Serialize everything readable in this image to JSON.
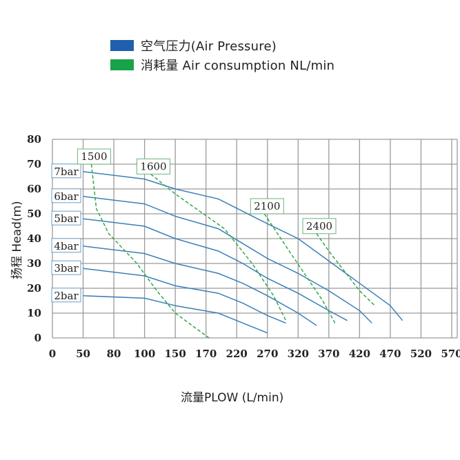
{
  "legend": [
    {
      "label": "空气压力(Air Pressure)",
      "color": "#1f5fae"
    },
    {
      "label": "消耗量 Air consumption NL/min",
      "color": "#17a34a"
    }
  ],
  "chart_data": {
    "type": "line",
    "xlabel": "流量PLOW (L/min)",
    "ylabel": "扬程 Head(m)",
    "x_ticks": [
      "0",
      "50",
      "80",
      "100",
      "150",
      "170",
      "220",
      "270",
      "320",
      "370",
      "420",
      "470",
      "520",
      "570"
    ],
    "y_ticks": [
      0,
      10,
      20,
      30,
      40,
      50,
      60,
      70,
      80
    ],
    "ylim": [
      0,
      80
    ],
    "grid": true,
    "series": [
      {
        "name": "7bar",
        "type": "pressure",
        "color": "#3b7fb8",
        "points": [
          [
            50,
            67
          ],
          [
            100,
            64
          ],
          [
            150,
            60
          ],
          [
            190,
            56
          ],
          [
            230,
            51
          ],
          [
            270,
            46
          ],
          [
            320,
            40
          ],
          [
            370,
            31
          ],
          [
            420,
            22
          ],
          [
            470,
            13
          ],
          [
            490,
            7
          ]
        ]
      },
      {
        "name": "6bar",
        "type": "pressure",
        "color": "#3b7fb8",
        "points": [
          [
            50,
            57
          ],
          [
            100,
            54
          ],
          [
            150,
            49
          ],
          [
            190,
            44
          ],
          [
            230,
            38
          ],
          [
            270,
            32
          ],
          [
            320,
            26
          ],
          [
            370,
            19
          ],
          [
            420,
            11
          ],
          [
            440,
            6
          ]
        ]
      },
      {
        "name": "5bar",
        "type": "pressure",
        "color": "#3b7fb8",
        "points": [
          [
            50,
            48
          ],
          [
            100,
            45
          ],
          [
            150,
            40
          ],
          [
            190,
            35
          ],
          [
            230,
            30
          ],
          [
            270,
            24
          ],
          [
            320,
            18
          ],
          [
            370,
            11
          ],
          [
            400,
            7
          ]
        ]
      },
      {
        "name": "4bar",
        "type": "pressure",
        "color": "#3b7fb8",
        "points": [
          [
            50,
            37
          ],
          [
            100,
            34
          ],
          [
            150,
            30
          ],
          [
            190,
            26
          ],
          [
            230,
            22
          ],
          [
            270,
            17
          ],
          [
            320,
            10
          ],
          [
            350,
            5
          ]
        ]
      },
      {
        "name": "3bar",
        "type": "pressure",
        "color": "#3b7fb8",
        "points": [
          [
            50,
            28
          ],
          [
            100,
            25
          ],
          [
            150,
            21
          ],
          [
            190,
            18
          ],
          [
            230,
            14
          ],
          [
            270,
            9
          ],
          [
            300,
            6
          ]
        ]
      },
      {
        "name": "2bar",
        "type": "pressure",
        "color": "#3b7fb8",
        "points": [
          [
            50,
            17
          ],
          [
            100,
            16
          ],
          [
            150,
            13
          ],
          [
            190,
            10
          ],
          [
            230,
            6
          ],
          [
            270,
            2
          ]
        ]
      },
      {
        "name": "1500",
        "type": "consumption",
        "color": "#2ea84a",
        "points": [
          [
            58,
            70
          ],
          [
            63,
            52
          ],
          [
            75,
            42
          ],
          [
            95,
            30
          ],
          [
            120,
            19
          ],
          [
            150,
            10
          ],
          [
            175,
            0
          ]
        ]
      },
      {
        "name": "1600",
        "type": "consumption",
        "color": "#2ea84a",
        "points": [
          [
            110,
            66
          ],
          [
            150,
            58
          ],
          [
            200,
            44
          ],
          [
            245,
            30
          ],
          [
            280,
            17
          ],
          [
            300,
            7
          ]
        ]
      },
      {
        "name": "2100",
        "type": "consumption",
        "color": "#2ea84a",
        "points": [
          [
            265,
            50
          ],
          [
            300,
            37
          ],
          [
            330,
            26
          ],
          [
            360,
            15
          ],
          [
            380,
            6
          ]
        ]
      },
      {
        "name": "2400",
        "type": "consumption",
        "color": "#2ea84a",
        "points": [
          [
            350,
            42
          ],
          [
            370,
            35
          ],
          [
            395,
            27
          ],
          [
            420,
            19
          ],
          [
            445,
            13
          ]
        ]
      }
    ],
    "pressure_labels": [
      "7bar",
      "6bar",
      "5bar",
      "4bar",
      "3bar",
      "2bar"
    ],
    "consumption_labels": [
      "1500",
      "1600",
      "2100",
      "2400"
    ]
  }
}
